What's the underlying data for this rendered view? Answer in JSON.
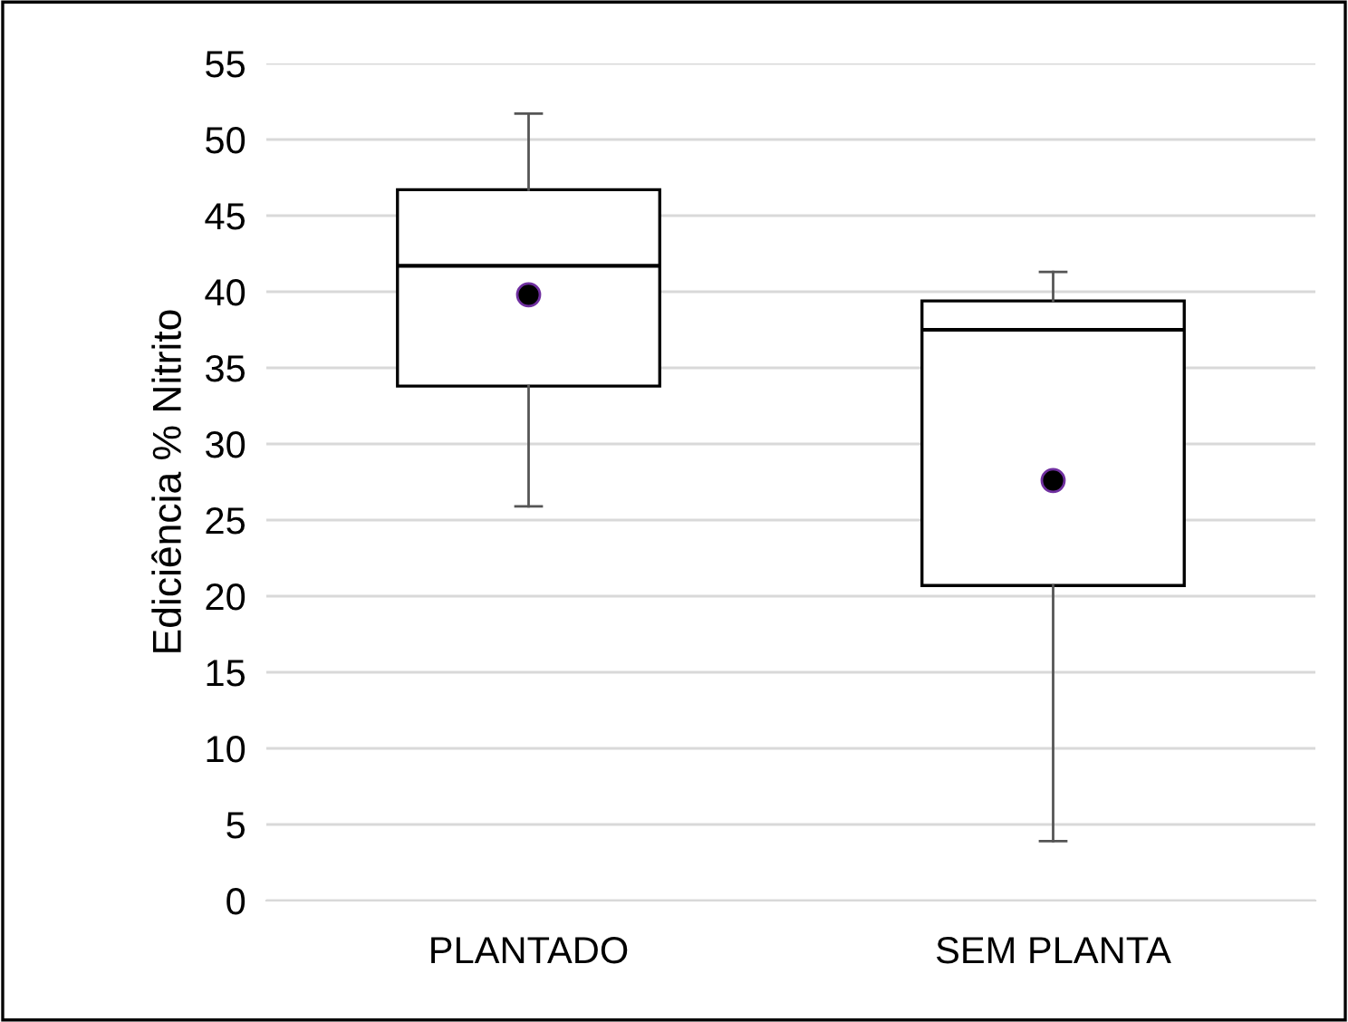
{
  "chart_data": {
    "type": "box",
    "ylabel": "Ediciência % Nitrito",
    "categories": [
      "PLANTADO",
      "SEM PLANTA"
    ],
    "boxes": [
      {
        "low": 25.9,
        "q1": 33.8,
        "median": 41.7,
        "q3": 46.7,
        "high": 51.7,
        "mean": 39.8
      },
      {
        "low": 3.9,
        "q1": 20.7,
        "median": 37.5,
        "q3": 39.4,
        "high": 41.3,
        "mean": 27.6
      }
    ],
    "ylim": [
      0,
      55
    ],
    "yticks": [
      0,
      5,
      10,
      15,
      20,
      25,
      30,
      35,
      40,
      45,
      50,
      55
    ],
    "grid": "y"
  }
}
